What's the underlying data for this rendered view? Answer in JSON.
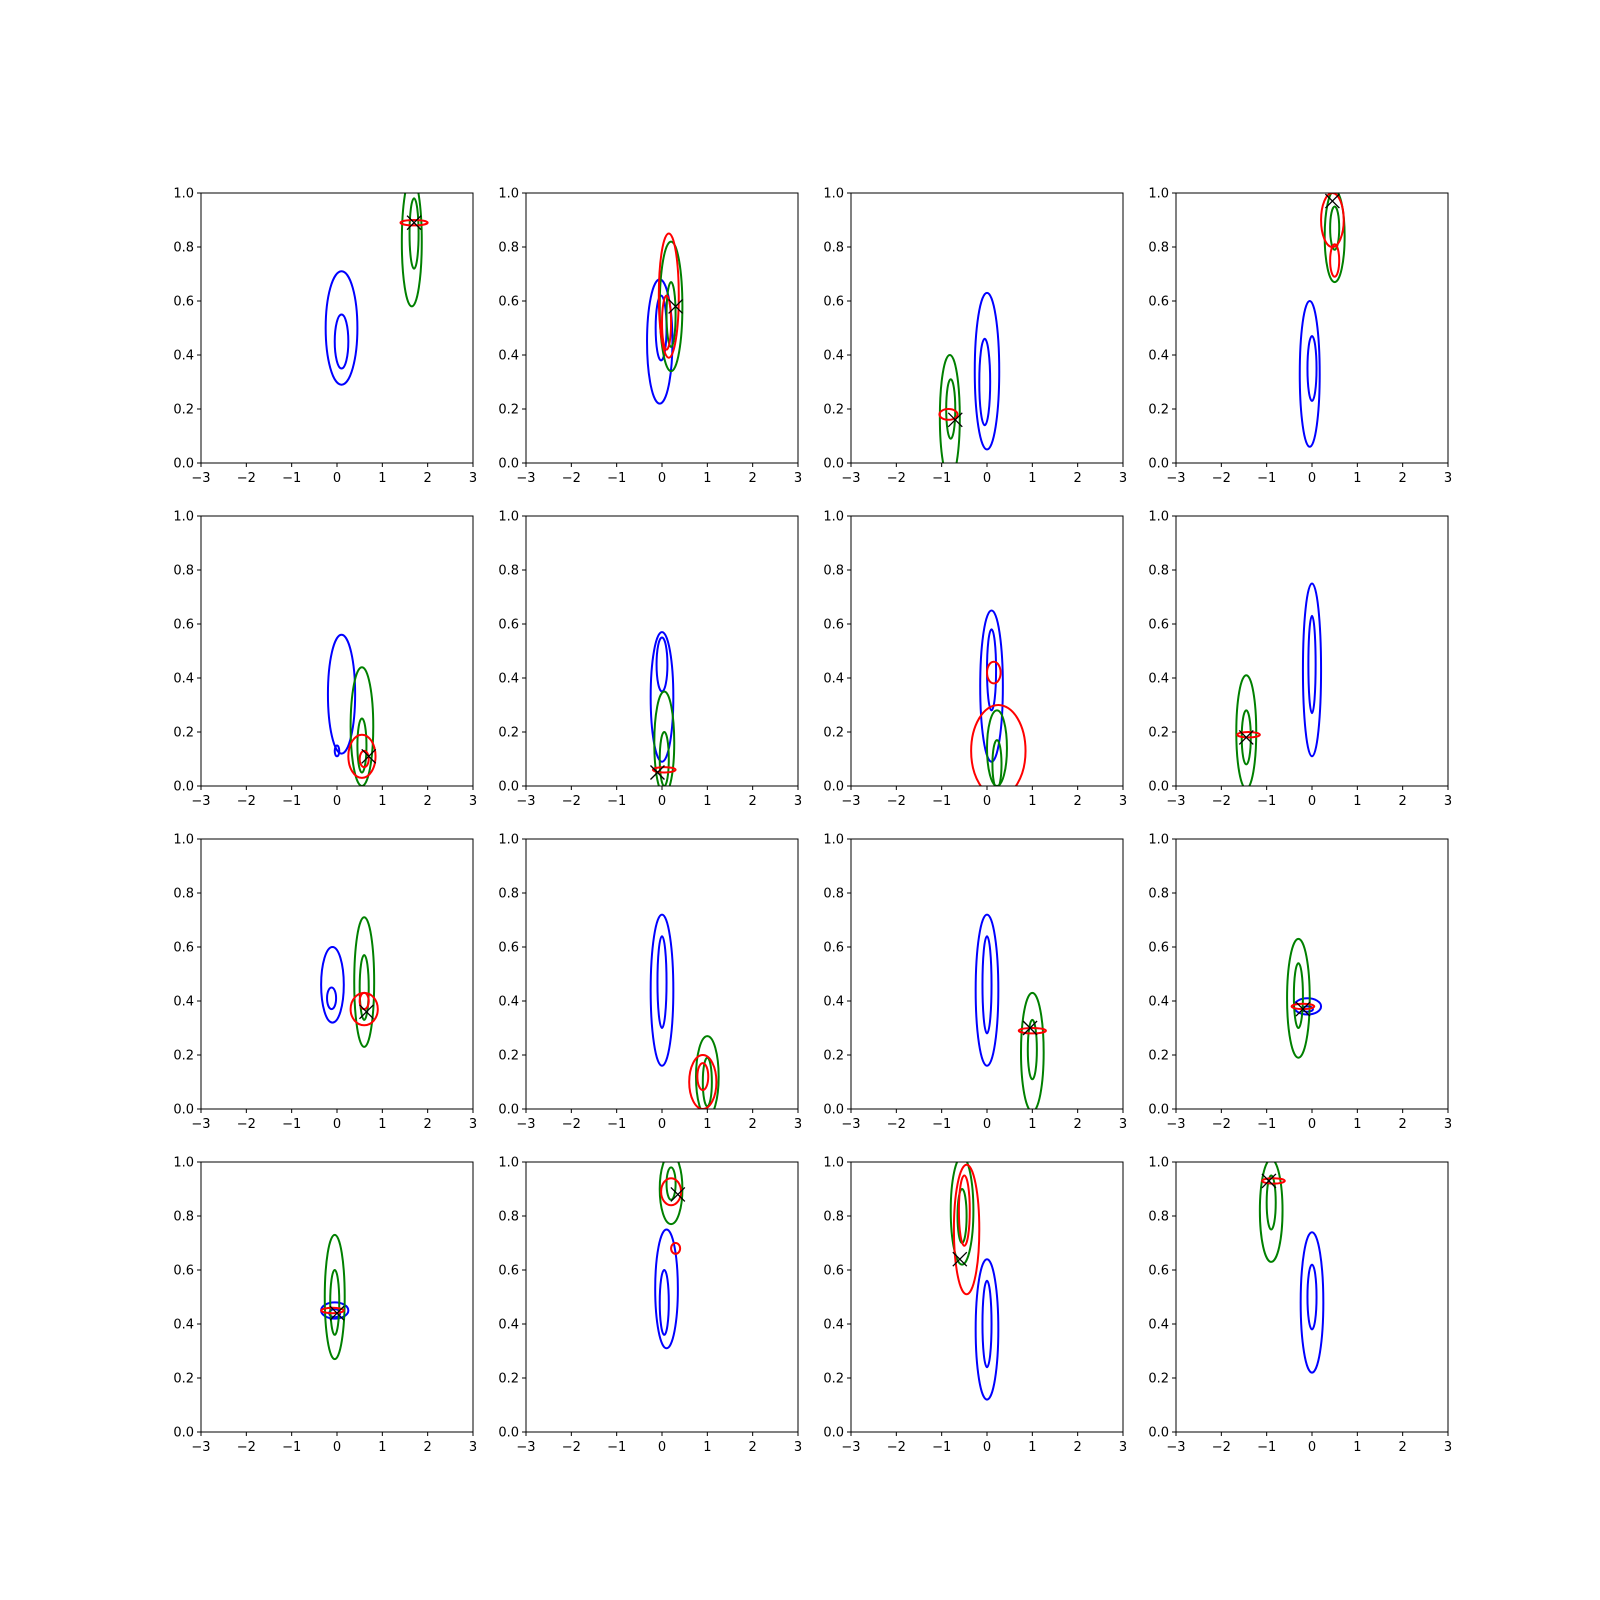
{
  "chart_data": {
    "type": "contour",
    "layout": {
      "rows": 4,
      "cols": 4
    },
    "colors": {
      "blue": "#0000ff",
      "green": "#008000",
      "red": "#ff0000",
      "marker": "#000000"
    },
    "xlim": [
      -3,
      3
    ],
    "ylim": [
      0,
      1
    ],
    "xticks": [
      -3,
      -2,
      -1,
      0,
      1,
      2,
      3
    ],
    "yticks": [
      0.0,
      0.2,
      0.4,
      0.6,
      0.8,
      1.0
    ],
    "xtick_labels": [
      "−3",
      "−2",
      "−1",
      "0",
      "1",
      "2",
      "3"
    ],
    "ytick_labels": [
      "0.0",
      "0.2",
      "0.4",
      "0.6",
      "0.8",
      "1.0"
    ],
    "panels": [
      {
        "blue": [
          {
            "cx": 0.1,
            "cy": 0.5,
            "rx": 0.35,
            "ry": 0.21
          },
          {
            "cx": 0.1,
            "cy": 0.45,
            "rx": 0.15,
            "ry": 0.1
          }
        ],
        "green": [
          {
            "cx": 1.65,
            "cy": 0.82,
            "rx": 0.22,
            "ry": 0.24
          },
          {
            "cx": 1.7,
            "cy": 0.85,
            "rx": 0.1,
            "ry": 0.13
          }
        ],
        "red": [
          {
            "cx": 1.7,
            "cy": 0.89,
            "rx": 0.3,
            "ry": 0.01
          }
        ],
        "marker": {
          "x": 1.7,
          "y": 0.89
        }
      },
      {
        "blue": [
          {
            "cx": -0.05,
            "cy": 0.45,
            "rx": 0.28,
            "ry": 0.23
          },
          {
            "cx": -0.02,
            "cy": 0.5,
            "rx": 0.12,
            "ry": 0.12
          }
        ],
        "green": [
          {
            "cx": 0.2,
            "cy": 0.58,
            "rx": 0.25,
            "ry": 0.24
          },
          {
            "cx": 0.2,
            "cy": 0.55,
            "rx": 0.1,
            "ry": 0.12
          }
        ],
        "red": [
          {
            "cx": 0.15,
            "cy": 0.62,
            "rx": 0.22,
            "ry": 0.23
          },
          {
            "cx": 0.1,
            "cy": 0.52,
            "rx": 0.1,
            "ry": 0.1
          }
        ],
        "marker": {
          "x": 0.3,
          "y": 0.58
        }
      },
      {
        "blue": [
          {
            "cx": 0.0,
            "cy": 0.34,
            "rx": 0.27,
            "ry": 0.29
          },
          {
            "cx": -0.05,
            "cy": 0.3,
            "rx": 0.12,
            "ry": 0.16
          }
        ],
        "green": [
          {
            "cx": -0.82,
            "cy": 0.17,
            "rx": 0.22,
            "ry": 0.23
          },
          {
            "cx": -0.8,
            "cy": 0.2,
            "rx": 0.1,
            "ry": 0.11
          }
        ],
        "red": [
          {
            "cx": -0.85,
            "cy": 0.18,
            "rx": 0.2,
            "ry": 0.02
          }
        ],
        "marker": {
          "x": -0.7,
          "y": 0.16
        }
      },
      {
        "blue": [
          {
            "cx": -0.05,
            "cy": 0.33,
            "rx": 0.22,
            "ry": 0.27
          },
          {
            "cx": 0.0,
            "cy": 0.35,
            "rx": 0.1,
            "ry": 0.12
          }
        ],
        "green": [
          {
            "cx": 0.5,
            "cy": 0.84,
            "rx": 0.22,
            "ry": 0.17
          },
          {
            "cx": 0.5,
            "cy": 0.87,
            "rx": 0.1,
            "ry": 0.08
          }
        ],
        "red": [
          {
            "cx": 0.45,
            "cy": 0.9,
            "rx": 0.25,
            "ry": 0.1
          },
          {
            "cx": 0.5,
            "cy": 0.75,
            "rx": 0.1,
            "ry": 0.06
          }
        ],
        "marker": {
          "x": 0.45,
          "y": 0.97
        }
      },
      {
        "blue": [
          {
            "cx": 0.1,
            "cy": 0.34,
            "rx": 0.3,
            "ry": 0.22
          },
          {
            "cx": 0.0,
            "cy": 0.13,
            "rx": 0.05,
            "ry": 0.02
          }
        ],
        "green": [
          {
            "cx": 0.55,
            "cy": 0.22,
            "rx": 0.25,
            "ry": 0.22
          },
          {
            "cx": 0.55,
            "cy": 0.15,
            "rx": 0.1,
            "ry": 0.1
          }
        ],
        "red": [
          {
            "cx": 0.55,
            "cy": 0.11,
            "rx": 0.3,
            "ry": 0.08
          },
          {
            "cx": 0.6,
            "cy": 0.1,
            "rx": 0.1,
            "ry": 0.03
          }
        ],
        "marker": {
          "x": 0.7,
          "y": 0.11
        }
      },
      {
        "blue": [
          {
            "cx": 0.0,
            "cy": 0.33,
            "rx": 0.25,
            "ry": 0.24
          },
          {
            "cx": 0.0,
            "cy": 0.45,
            "rx": 0.12,
            "ry": 0.1
          }
        ],
        "green": [
          {
            "cx": 0.05,
            "cy": 0.16,
            "rx": 0.22,
            "ry": 0.19
          },
          {
            "cx": 0.05,
            "cy": 0.1,
            "rx": 0.1,
            "ry": 0.1
          }
        ],
        "red": [
          {
            "cx": 0.05,
            "cy": 0.06,
            "rx": 0.25,
            "ry": 0.01
          }
        ],
        "marker": {
          "x": -0.1,
          "y": 0.05
        }
      },
      {
        "blue": [
          {
            "cx": 0.1,
            "cy": 0.37,
            "rx": 0.25,
            "ry": 0.28
          },
          {
            "cx": 0.1,
            "cy": 0.43,
            "rx": 0.1,
            "ry": 0.15
          }
        ],
        "green": [
          {
            "cx": 0.22,
            "cy": 0.14,
            "rx": 0.22,
            "ry": 0.14
          },
          {
            "cx": 0.22,
            "cy": 0.08,
            "rx": 0.1,
            "ry": 0.09
          }
        ],
        "red": [
          {
            "cx": 0.25,
            "cy": 0.13,
            "rx": 0.6,
            "ry": 0.17
          },
          {
            "cx": 0.15,
            "cy": 0.42,
            "rx": 0.15,
            "ry": 0.04
          }
        ],
        "marker": null
      },
      {
        "blue": [
          {
            "cx": 0.0,
            "cy": 0.43,
            "rx": 0.2,
            "ry": 0.32
          },
          {
            "cx": 0.0,
            "cy": 0.45,
            "rx": 0.08,
            "ry": 0.18
          }
        ],
        "green": [
          {
            "cx": -1.45,
            "cy": 0.2,
            "rx": 0.22,
            "ry": 0.21
          },
          {
            "cx": -1.45,
            "cy": 0.18,
            "rx": 0.1,
            "ry": 0.1
          }
        ],
        "red": [
          {
            "cx": -1.4,
            "cy": 0.19,
            "rx": 0.25,
            "ry": 0.01
          }
        ],
        "marker": {
          "x": -1.45,
          "y": 0.18
        }
      },
      {
        "blue": [
          {
            "cx": -0.1,
            "cy": 0.46,
            "rx": 0.25,
            "ry": 0.14
          },
          {
            "cx": -0.12,
            "cy": 0.41,
            "rx": 0.1,
            "ry": 0.04
          }
        ],
        "green": [
          {
            "cx": 0.6,
            "cy": 0.47,
            "rx": 0.22,
            "ry": 0.24
          },
          {
            "cx": 0.6,
            "cy": 0.45,
            "rx": 0.1,
            "ry": 0.12
          }
        ],
        "red": [
          {
            "cx": 0.6,
            "cy": 0.37,
            "rx": 0.3,
            "ry": 0.06
          },
          {
            "cx": 0.6,
            "cy": 0.4,
            "rx": 0.1,
            "ry": 0.03
          }
        ],
        "marker": {
          "x": 0.65,
          "y": 0.36
        }
      },
      {
        "blue": [
          {
            "cx": 0.0,
            "cy": 0.44,
            "rx": 0.25,
            "ry": 0.28
          },
          {
            "cx": 0.0,
            "cy": 0.47,
            "rx": 0.1,
            "ry": 0.17
          }
        ],
        "green": [
          {
            "cx": 1.0,
            "cy": 0.12,
            "rx": 0.25,
            "ry": 0.15
          },
          {
            "cx": 1.0,
            "cy": 0.1,
            "rx": 0.1,
            "ry": 0.09
          }
        ],
        "red": [
          {
            "cx": 0.9,
            "cy": 0.1,
            "rx": 0.3,
            "ry": 0.1
          },
          {
            "cx": 0.9,
            "cy": 0.12,
            "rx": 0.12,
            "ry": 0.05
          }
        ],
        "marker": null
      },
      {
        "blue": [
          {
            "cx": 0.0,
            "cy": 0.44,
            "rx": 0.25,
            "ry": 0.28
          },
          {
            "cx": 0.0,
            "cy": 0.46,
            "rx": 0.1,
            "ry": 0.18
          }
        ],
        "green": [
          {
            "cx": 1.0,
            "cy": 0.21,
            "rx": 0.25,
            "ry": 0.22
          },
          {
            "cx": 1.0,
            "cy": 0.22,
            "rx": 0.1,
            "ry": 0.11
          }
        ],
        "red": [
          {
            "cx": 1.0,
            "cy": 0.29,
            "rx": 0.3,
            "ry": 0.01
          }
        ],
        "marker": {
          "x": 0.95,
          "y": 0.3
        }
      },
      {
        "blue": [
          {
            "cx": -0.1,
            "cy": 0.38,
            "rx": 0.3,
            "ry": 0.03
          },
          {
            "cx": -0.1,
            "cy": 0.37,
            "rx": 0.12,
            "ry": 0.01
          }
        ],
        "green": [
          {
            "cx": -0.3,
            "cy": 0.41,
            "rx": 0.25,
            "ry": 0.22
          },
          {
            "cx": -0.3,
            "cy": 0.42,
            "rx": 0.1,
            "ry": 0.12
          }
        ],
        "red": [
          {
            "cx": -0.2,
            "cy": 0.38,
            "rx": 0.25,
            "ry": 0.01
          }
        ],
        "marker": {
          "x": -0.2,
          "y": 0.37
        }
      },
      {
        "blue": [
          {
            "cx": -0.05,
            "cy": 0.45,
            "rx": 0.3,
            "ry": 0.03
          },
          {
            "cx": -0.05,
            "cy": 0.44,
            "rx": 0.12,
            "ry": 0.015
          }
        ],
        "green": [
          {
            "cx": -0.05,
            "cy": 0.5,
            "rx": 0.22,
            "ry": 0.23
          },
          {
            "cx": -0.05,
            "cy": 0.48,
            "rx": 0.1,
            "ry": 0.12
          }
        ],
        "red": [
          {
            "cx": -0.1,
            "cy": 0.45,
            "rx": 0.25,
            "ry": 0.01
          }
        ],
        "marker": {
          "x": 0.0,
          "y": 0.44
        }
      },
      {
        "blue": [
          {
            "cx": 0.1,
            "cy": 0.53,
            "rx": 0.25,
            "ry": 0.22
          },
          {
            "cx": 0.05,
            "cy": 0.48,
            "rx": 0.1,
            "ry": 0.12
          }
        ],
        "green": [
          {
            "cx": 0.2,
            "cy": 0.9,
            "rx": 0.25,
            "ry": 0.13
          },
          {
            "cx": 0.2,
            "cy": 0.92,
            "rx": 0.1,
            "ry": 0.06
          }
        ],
        "red": [
          {
            "cx": 0.2,
            "cy": 0.89,
            "rx": 0.22,
            "ry": 0.05
          },
          {
            "cx": 0.3,
            "cy": 0.68,
            "rx": 0.1,
            "ry": 0.02
          }
        ],
        "marker": {
          "x": 0.35,
          "y": 0.88
        }
      },
      {
        "blue": [
          {
            "cx": 0.0,
            "cy": 0.38,
            "rx": 0.25,
            "ry": 0.26
          },
          {
            "cx": 0.0,
            "cy": 0.4,
            "rx": 0.1,
            "ry": 0.16
          }
        ],
        "green": [
          {
            "cx": -0.55,
            "cy": 0.82,
            "rx": 0.25,
            "ry": 0.2
          },
          {
            "cx": -0.55,
            "cy": 0.8,
            "rx": 0.1,
            "ry": 0.1
          }
        ],
        "red": [
          {
            "cx": -0.45,
            "cy": 0.75,
            "rx": 0.28,
            "ry": 0.24
          },
          {
            "cx": -0.5,
            "cy": 0.82,
            "rx": 0.12,
            "ry": 0.13
          }
        ],
        "marker": {
          "x": -0.6,
          "y": 0.64
        }
      },
      {
        "blue": [
          {
            "cx": 0.0,
            "cy": 0.48,
            "rx": 0.25,
            "ry": 0.26
          },
          {
            "cx": 0.0,
            "cy": 0.5,
            "rx": 0.1,
            "ry": 0.12
          }
        ],
        "green": [
          {
            "cx": -0.9,
            "cy": 0.82,
            "rx": 0.25,
            "ry": 0.19
          },
          {
            "cx": -0.9,
            "cy": 0.85,
            "rx": 0.1,
            "ry": 0.1
          }
        ],
        "red": [
          {
            "cx": -0.85,
            "cy": 0.93,
            "rx": 0.25,
            "ry": 0.01
          }
        ],
        "marker": {
          "x": -0.95,
          "y": 0.93
        }
      }
    ]
  }
}
